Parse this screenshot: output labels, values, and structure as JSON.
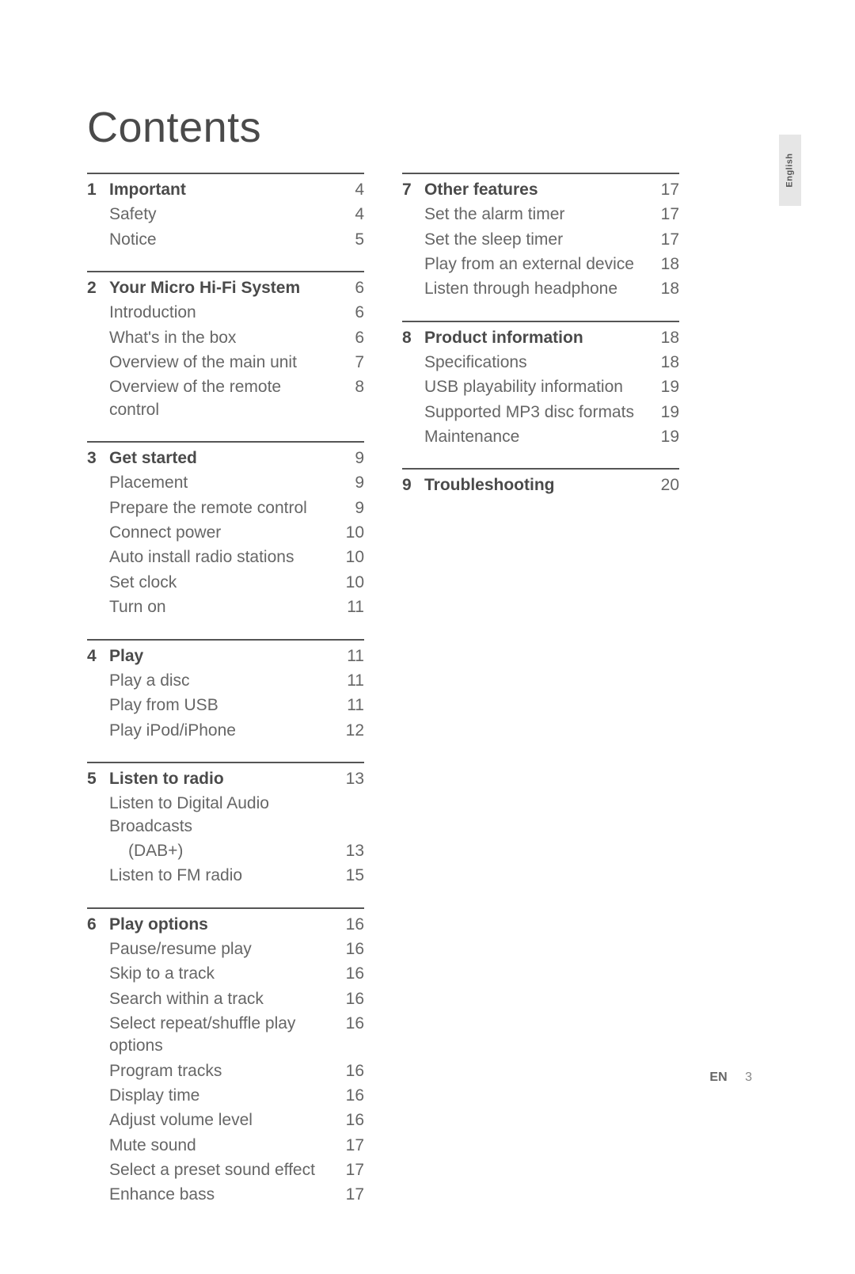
{
  "title": "Contents",
  "side_tab": "English",
  "footer": {
    "lang": "EN",
    "page": "3"
  },
  "left_sections": [
    {
      "num": "1",
      "head": {
        "label": "Important",
        "page": "4"
      },
      "items": [
        {
          "label": "Safety",
          "page": "4"
        },
        {
          "label": "Notice",
          "page": "5"
        }
      ]
    },
    {
      "num": "2",
      "head": {
        "label": "Your Micro Hi-Fi System",
        "page": "6"
      },
      "items": [
        {
          "label": "Introduction",
          "page": "6"
        },
        {
          "label": "What's in the box",
          "page": "6"
        },
        {
          "label": "Overview of the main unit",
          "page": "7"
        },
        {
          "label": "Overview of the remote control",
          "page": "8"
        }
      ]
    },
    {
      "num": "3",
      "head": {
        "label": "Get started",
        "page": "9"
      },
      "items": [
        {
          "label": "Placement",
          "page": "9"
        },
        {
          "label": "Prepare the remote control",
          "page": "9"
        },
        {
          "label": "Connect power",
          "page": "10"
        },
        {
          "label": "Auto install radio stations",
          "page": "10"
        },
        {
          "label": "Set clock",
          "page": "10"
        },
        {
          "label": "Turn on",
          "page": "11"
        }
      ]
    },
    {
      "num": "4",
      "head": {
        "label": "Play",
        "page": "11"
      },
      "items": [
        {
          "label": "Play a disc",
          "page": "11"
        },
        {
          "label": "Play from USB",
          "page": "11"
        },
        {
          "label": "Play iPod/iPhone",
          "page": "12"
        }
      ]
    },
    {
      "num": "5",
      "head": {
        "label": "Listen to radio",
        "page": "13"
      },
      "items": [
        {
          "label": "Listen to Digital Audio Broadcasts",
          "page": ""
        },
        {
          "label": "(DAB+)",
          "page": "13",
          "indent": true
        },
        {
          "label": "Listen to FM radio",
          "page": "15"
        }
      ]
    },
    {
      "num": "6",
      "head": {
        "label": "Play options",
        "page": "16"
      },
      "items": [
        {
          "label": "Pause/resume play",
          "page": "16"
        },
        {
          "label": "Skip to a track",
          "page": "16"
        },
        {
          "label": "Search within a track",
          "page": "16"
        },
        {
          "label": "Select repeat/shuffle play options",
          "page": "16"
        },
        {
          "label": "Program tracks",
          "page": "16"
        },
        {
          "label": "Display time",
          "page": "16"
        },
        {
          "label": "Adjust volume level",
          "page": "16"
        },
        {
          "label": "Mute sound",
          "page": "17"
        },
        {
          "label": "Select a preset sound effect",
          "page": "17"
        },
        {
          "label": "Enhance bass",
          "page": "17"
        }
      ]
    }
  ],
  "right_sections": [
    {
      "num": "7",
      "head": {
        "label": "Other features",
        "page": "17"
      },
      "items": [
        {
          "label": "Set the alarm timer",
          "page": "17"
        },
        {
          "label": "Set the sleep timer",
          "page": "17"
        },
        {
          "label": "Play from an external device",
          "page": "18"
        },
        {
          "label": "Listen through headphone",
          "page": "18"
        }
      ]
    },
    {
      "num": "8",
      "head": {
        "label": "Product information",
        "page": "18"
      },
      "items": [
        {
          "label": "Specifications",
          "page": "18"
        },
        {
          "label": "USB playability information",
          "page": "19"
        },
        {
          "label": "Supported MP3 disc formats",
          "page": "19"
        },
        {
          "label": "Maintenance",
          "page": "19"
        }
      ]
    },
    {
      "num": "9",
      "head": {
        "label": "Troubleshooting",
        "page": "20"
      },
      "items": []
    }
  ]
}
